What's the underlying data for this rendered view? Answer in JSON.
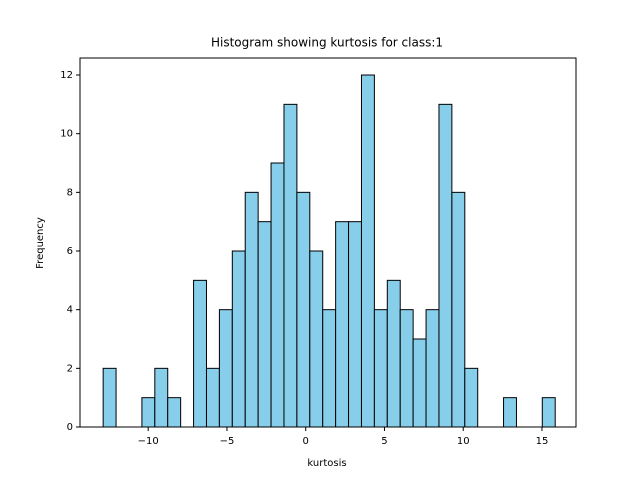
{
  "chart_data": {
    "type": "histogram",
    "title": "Histogram showing kurtosis for class:1",
    "xlabel": "kurtosis",
    "ylabel": "Frequency",
    "color": "#87ceeb",
    "edgecolor": "#000000",
    "bins": [
      -12.86,
      -12.04,
      -11.22,
      -10.4,
      -9.58,
      -8.76,
      -7.94,
      -7.12,
      -6.3,
      -5.48,
      -4.66,
      -3.84,
      -3.02,
      -2.2,
      -1.38,
      -0.56,
      0.26,
      1.08,
      1.9,
      2.72,
      3.54,
      4.36,
      5.18,
      6,
      6.82,
      7.64,
      8.46,
      9.28,
      10.1,
      10.92,
      11.74,
      12.56,
      13.38,
      14.2,
      15.02,
      15.84
    ],
    "counts": [
      2,
      0,
      0,
      1,
      2,
      1,
      0,
      5,
      2,
      4,
      6,
      8,
      7,
      9,
      11,
      8,
      6,
      4,
      7,
      7,
      12,
      4,
      5,
      4,
      3,
      4,
      11,
      8,
      2,
      0,
      0,
      1,
      0,
      0,
      1
    ],
    "xlim": [
      -14.33,
      17.16
    ],
    "xticks": [
      {
        "value": -10,
        "label": "−10"
      },
      {
        "value": -5,
        "label": "−5"
      },
      0,
      5,
      10,
      15
    ],
    "ylim": [
      0,
      12.58
    ],
    "yticks": [
      0,
      2,
      4,
      6,
      8,
      10,
      12
    ]
  }
}
